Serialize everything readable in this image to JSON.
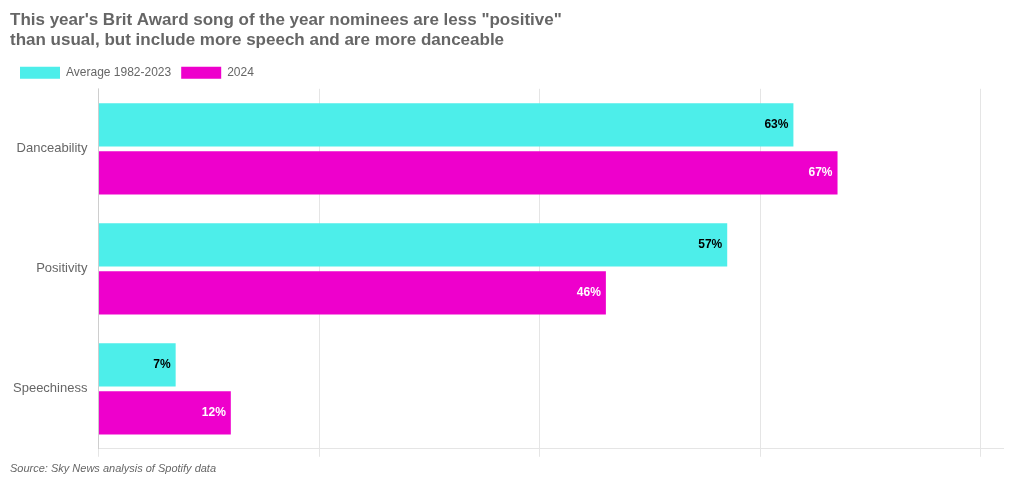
{
  "chart_data": {
    "type": "bar",
    "orientation": "horizontal",
    "title": [
      "This year's Brit Award song of the year nominees are less \"positive\"",
      "than usual, but include more speech and are more danceable"
    ],
    "annotations": [
      "Source: Sky News analysis of Spotify data"
    ],
    "categories": [
      "Danceability",
      "Positivity",
      "Speechiness"
    ],
    "series": [
      {
        "name": "Average 1982-2023",
        "color": "#4DEEEA",
        "values": [
          63,
          57,
          7
        ],
        "value_labels": [
          "63%",
          "57%",
          "7%"
        ]
      },
      {
        "name": "2024",
        "color": "#EE00CC",
        "values": [
          67,
          46,
          12
        ],
        "value_labels": [
          "67%",
          "46%",
          "12%"
        ]
      }
    ],
    "xlim": [
      0,
      82
    ],
    "xticks": [
      0,
      20,
      40,
      60,
      80
    ],
    "grid": true,
    "tick_labels": "y",
    "legend": "top",
    "data_labels": true
  }
}
